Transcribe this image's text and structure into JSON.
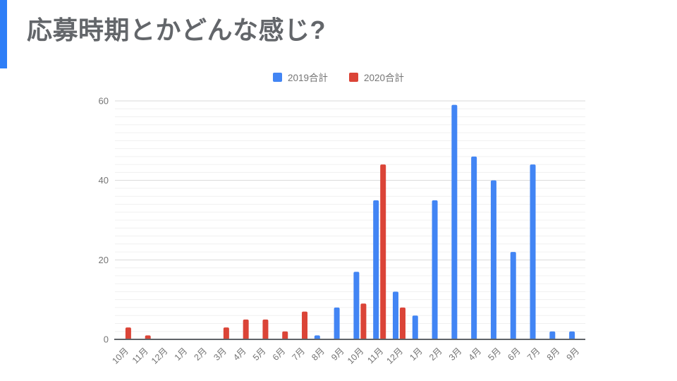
{
  "slide": {
    "background": "#ffffff",
    "accent_color": "#2e7ef7"
  },
  "title": {
    "text": "応募時期とかどんな感じ?",
    "color": "#63666a"
  },
  "legend": [
    {
      "label": "2019合計",
      "color": "#4285f4"
    },
    {
      "label": "2020合計",
      "color": "#db4437"
    }
  ],
  "chart_data": {
    "type": "bar",
    "title": "応募時期とかどんな感じ?",
    "xlabel": "",
    "ylabel": "",
    "categories": [
      "10月",
      "11月",
      "12月",
      "1月",
      "2月",
      "3月",
      "4月",
      "5月",
      "6月",
      "7月",
      "8月",
      "9月",
      "10月",
      "11月",
      "12月",
      "1月",
      "2月",
      "3月",
      "4月",
      "5月",
      "6月",
      "7月",
      "8月",
      "9月"
    ],
    "series": [
      {
        "name": "2019合計",
        "color": "#4285f4",
        "values": [
          0,
          0,
          0,
          0,
          0,
          0,
          0,
          0,
          0,
          0,
          1,
          8,
          17,
          35,
          12,
          6,
          35,
          59,
          46,
          40,
          22,
          44,
          2,
          2
        ]
      },
      {
        "name": "2020合計",
        "color": "#db4437",
        "values": [
          3,
          1,
          0,
          0,
          0,
          3,
          5,
          5,
          2,
          7,
          0,
          0,
          9,
          44,
          8,
          0,
          0,
          0,
          0,
          0,
          0,
          0,
          0,
          0
        ]
      }
    ],
    "ylim": [
      0,
      60
    ],
    "y_major_ticks": [
      0,
      20,
      40,
      60
    ],
    "y_minor_step": 2,
    "grid": true,
    "legend_position": "top-center",
    "x_label_rotation": -45,
    "axis_text_color": "#757575",
    "major_grid_color": "#d9d9d9",
    "minor_grid_color": "#f0f0f0",
    "baseline_color": "#5f6368"
  }
}
